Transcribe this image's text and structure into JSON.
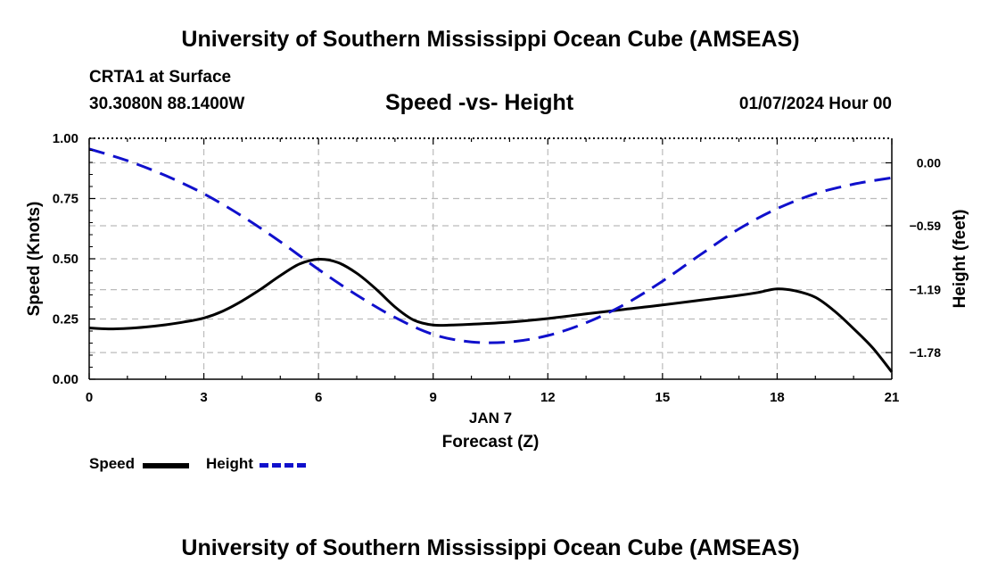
{
  "header": {
    "main_title": "University of Southern Mississippi Ocean Cube (AMSEAS)",
    "station": "CRTA1 at Surface",
    "coords": "30.3080N  88.1400W",
    "chart_title": "Speed -vs- Height",
    "date": "01/07/2024 Hour 00"
  },
  "footer": {
    "title": "University of Southern Mississippi Ocean Cube (AMSEAS)"
  },
  "legend": {
    "speed_label": "Speed",
    "height_label": "Height"
  },
  "colors": {
    "speed": "#000000",
    "height": "#1010cc",
    "grid": "#bbbbbb"
  },
  "chart_data": {
    "type": "line",
    "title": "Speed -vs- Height",
    "xlabel": "Forecast (Z)",
    "xlabel_date": "JAN 7",
    "ylabel": "Speed (Knots)",
    "y2label": "Height (feet)",
    "xlim": [
      0,
      21
    ],
    "ylim": [
      0,
      1
    ],
    "y2lim": [
      -2.03,
      0.23
    ],
    "x_ticks": [
      0,
      3,
      6,
      9,
      12,
      15,
      18,
      21
    ],
    "x_tick_labels": [
      "0",
      "3",
      "6",
      "9",
      "12",
      "15",
      "18",
      "21"
    ],
    "y_ticks": [
      0,
      0.25,
      0.5,
      0.75,
      1.0
    ],
    "y_tick_labels": [
      "0.00",
      "0.25",
      "0.50",
      "0.75",
      "1.00"
    ],
    "y2_ticks": [
      0.0,
      -0.59,
      -1.19,
      -1.78
    ],
    "y2_tick_labels": [
      "0.00",
      "−0.59",
      "−1.19",
      "−1.78"
    ],
    "grid": true,
    "legend_position": "bottom-left",
    "series": [
      {
        "name": "Speed",
        "axis": "left",
        "style": "solid",
        "x": [
          0,
          0.5,
          1,
          1.5,
          2,
          2.5,
          3,
          3.5,
          4,
          4.5,
          5,
          5.5,
          6,
          6.5,
          7,
          7.5,
          8,
          8.5,
          9,
          9.5,
          10,
          11,
          12,
          13,
          14,
          15,
          16,
          17,
          17.5,
          18,
          18.5,
          19,
          19.5,
          20,
          20.5,
          21
        ],
        "values": [
          0.213,
          0.209,
          0.211,
          0.217,
          0.226,
          0.238,
          0.254,
          0.283,
          0.325,
          0.375,
          0.43,
          0.478,
          0.498,
          0.485,
          0.44,
          0.375,
          0.3,
          0.245,
          0.225,
          0.225,
          0.228,
          0.237,
          0.252,
          0.271,
          0.29,
          0.308,
          0.328,
          0.348,
          0.36,
          0.375,
          0.366,
          0.34,
          0.283,
          0.21,
          0.13,
          0.03
        ]
      },
      {
        "name": "Height",
        "axis": "right",
        "style": "dashed",
        "x": [
          0,
          1,
          2,
          3,
          4,
          5,
          6,
          7,
          8,
          9,
          10,
          11,
          12,
          13,
          14,
          15,
          16,
          17,
          18,
          19,
          20,
          21
        ],
        "values": [
          0.13,
          0.02,
          -0.12,
          -0.29,
          -0.5,
          -0.74,
          -1.0,
          -1.24,
          -1.45,
          -1.61,
          -1.68,
          -1.68,
          -1.62,
          -1.5,
          -1.33,
          -1.11,
          -0.86,
          -0.62,
          -0.43,
          -0.29,
          -0.2,
          -0.14
        ]
      }
    ]
  }
}
